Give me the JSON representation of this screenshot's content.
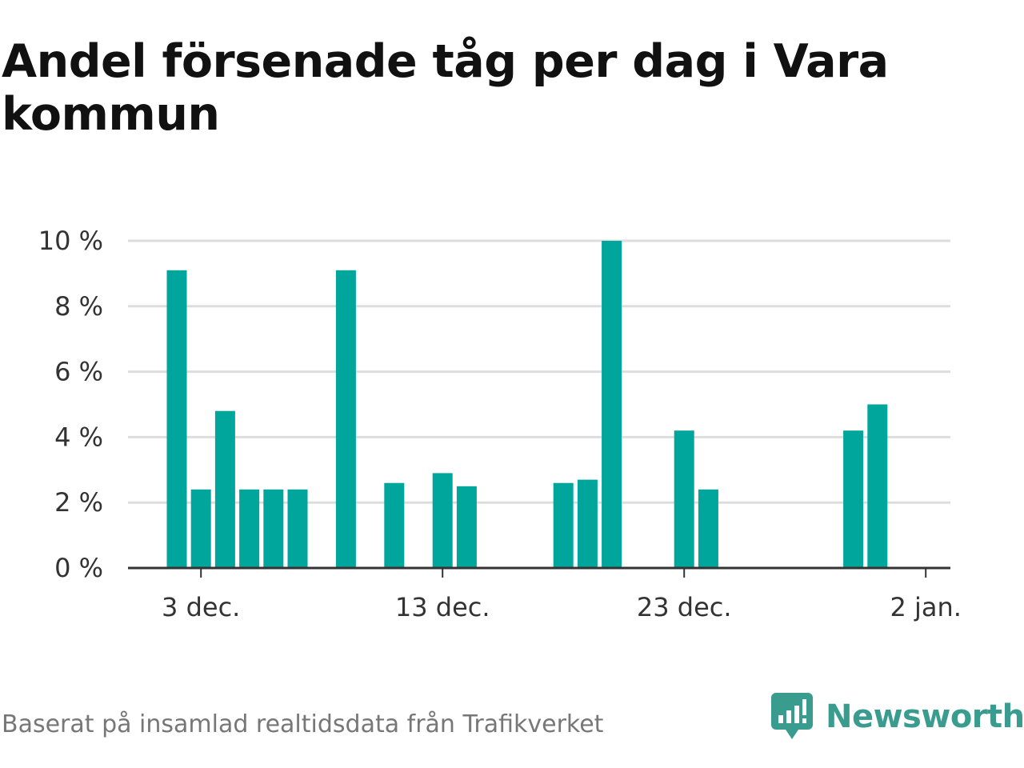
{
  "title": "Andel försenade tåg per dag i Vara kommun",
  "footer": "Baserat på insamlad realtidsdata från Trafikverket",
  "brand": {
    "name": "Newsworthy",
    "icon": "newsworthy-logo-icon",
    "color": "#3a9b8f"
  },
  "colors": {
    "bar": "#00a69c",
    "grid": "#dddddd",
    "axis": "#333333",
    "text": "#333333"
  },
  "chart_data": {
    "type": "bar",
    "title": "Andel försenade tåg per dag i Vara kommun",
    "xlabel": "",
    "ylabel": "",
    "x_ticks": [
      "3 dec.",
      "13 dec.",
      "23 dec.",
      "2 jan."
    ],
    "y_ticks": [
      "0 %",
      "2 %",
      "4 %",
      "6 %",
      "8 %",
      "10 %"
    ],
    "ylim": [
      0,
      10
    ],
    "grid": true,
    "categories": [
      "2 dec.",
      "3 dec.",
      "4 dec.",
      "5 dec.",
      "6 dec.",
      "7 dec.",
      "8 dec.",
      "9 dec.",
      "10 dec.",
      "11 dec.",
      "12 dec.",
      "13 dec.",
      "14 dec.",
      "15 dec.",
      "16 dec.",
      "17 dec.",
      "18 dec.",
      "19 dec.",
      "20 dec.",
      "21 dec.",
      "22 dec.",
      "23 dec.",
      "24 dec.",
      "25 dec.",
      "26 dec.",
      "27 dec.",
      "28 dec.",
      "29 dec.",
      "30 dec.",
      "31 dec."
    ],
    "values": [
      9.1,
      2.4,
      4.8,
      2.4,
      2.4,
      2.4,
      0,
      9.1,
      0,
      2.6,
      0,
      2.9,
      2.5,
      0,
      0,
      0,
      2.6,
      2.7,
      10.0,
      0,
      0,
      4.2,
      2.4,
      0,
      0,
      0,
      0,
      0,
      4.2,
      5.0
    ]
  }
}
